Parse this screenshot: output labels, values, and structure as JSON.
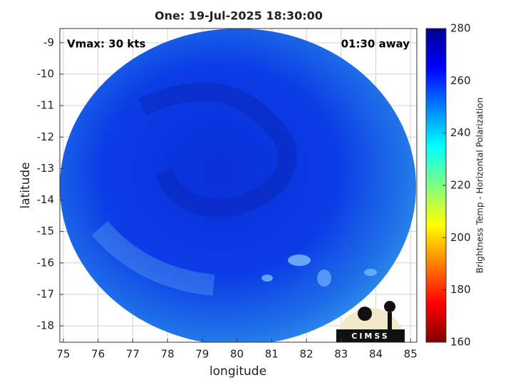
{
  "chart_data": {
    "type": "map",
    "title": "One: 19-Jul-2025 18:30:00",
    "annotations": [
      "Vmax: 30 kts",
      "01:30 away"
    ],
    "xlabel": "longitude",
    "ylabel": "latitude",
    "xlim": [
      74.9,
      85.18
    ],
    "ylim": [
      -18.52,
      -8.55
    ],
    "xticks": [
      75,
      76,
      77,
      78,
      79,
      80,
      81,
      82,
      83,
      84,
      85
    ],
    "yticks": [
      -18,
      -17,
      -16,
      -15,
      -14,
      -13,
      -12,
      -11,
      -10,
      -9
    ],
    "grid": true,
    "colorbar": {
      "label": "Brightness Temp - Horizontal Polarization",
      "lim": [
        160,
        280
      ],
      "ticks": [
        160,
        180,
        200,
        220,
        240,
        260,
        280
      ],
      "colors": [
        "#800000",
        "#ff0000",
        "#ff8000",
        "#ffff00",
        "#80ff80",
        "#00ffff",
        "#0080ff",
        "#0000ff",
        "#00008f"
      ]
    },
    "logo": "CIMSS"
  }
}
